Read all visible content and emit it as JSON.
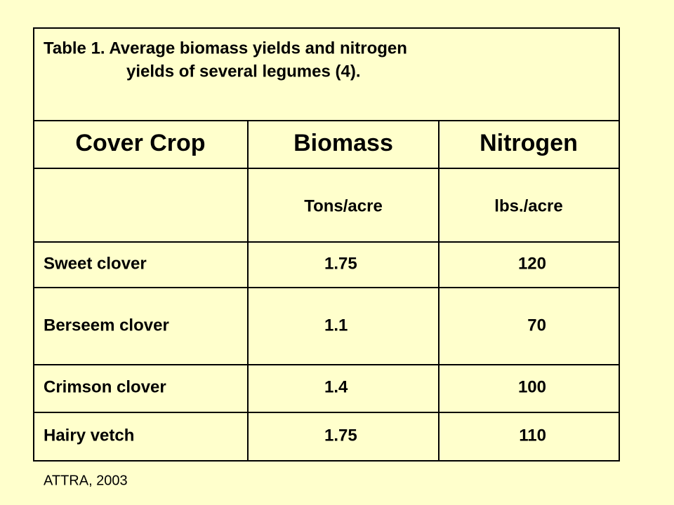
{
  "table": {
    "title": [
      "Table 1. Average biomass yields and nitrogen",
      "yields of several legumes (4)."
    ],
    "header": [
      "Cover Crop",
      "Biomass",
      "Nitrogen"
    ],
    "units": [
      "Tons/acre",
      "lbs./acre"
    ],
    "rows": [
      [
        "Sweet clover",
        1.75,
        120
      ],
      [
        "Berseem clover",
        1.1,
        70
      ],
      [
        "Crimson clover",
        1.4,
        100
      ],
      [
        "Hairy vetch",
        1.75,
        110
      ]
    ]
  },
  "source": "ATTRA, 2003"
}
